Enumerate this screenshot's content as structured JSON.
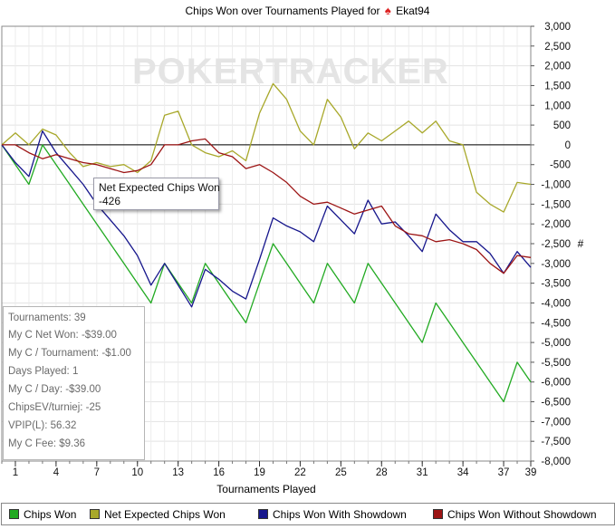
{
  "title": {
    "prefix": "Chips Won over Tournaments Played for",
    "player": "Ekat94"
  },
  "watermark": "POKERTRACKER",
  "stats": [
    "Tournaments: 39",
    "My C Net Won: -$39.00",
    "My C / Tournament: -$1.00",
    "Days Played: 1",
    "My C / Day: -$39.00",
    "ChipsEV/turniej: -25",
    "VPIP(L): 56.32",
    "My C Fee: $9.36"
  ],
  "tooltip": {
    "label": "Net Expected Chips Won",
    "value": "-426"
  },
  "legend": [
    {
      "label": "Chips Won",
      "color": "#22aa22"
    },
    {
      "label": "Net Expected Chips Won",
      "color": "#a8a82a"
    },
    {
      "label": "Chips Won With Showdown",
      "color": "#16168c"
    },
    {
      "label": "Chips Won Without Showdown",
      "color": "#9c1414"
    }
  ],
  "chart_data": {
    "type": "line",
    "title": "Chips Won over Tournaments Played for Ekat94",
    "xlabel": "Tournaments Played",
    "ylabel": "#",
    "xlim": [
      0,
      39
    ],
    "ylim": [
      -8000,
      3000
    ],
    "xticks": [
      1,
      4,
      7,
      10,
      13,
      16,
      19,
      22,
      25,
      28,
      31,
      34,
      37,
      39
    ],
    "yticks": [
      3000,
      2500,
      2000,
      1500,
      1000,
      500,
      0,
      -500,
      -1000,
      -1500,
      -2000,
      -2500,
      -3000,
      -3500,
      -4000,
      -4500,
      -5000,
      -5500,
      -6000,
      -6500,
      -7000,
      -7500,
      -8000
    ],
    "ytick_labels": [
      "3,000",
      "2,500",
      "2,000",
      "1,500",
      "1,000",
      "500",
      "0",
      "-500",
      "-1,000",
      "-1,500",
      "-2,000",
      "-2,500",
      "-3,000",
      "-3,500",
      "-4,000",
      "-4,500",
      "-5,000",
      "-5,500",
      "-6,000",
      "-6,500",
      "-7,000",
      "-7,500",
      "-8,000"
    ],
    "grid": true,
    "x": [
      0,
      1,
      2,
      3,
      4,
      5,
      6,
      7,
      8,
      9,
      10,
      11,
      12,
      13,
      14,
      15,
      16,
      17,
      18,
      19,
      20,
      21,
      22,
      23,
      24,
      25,
      26,
      27,
      28,
      29,
      30,
      31,
      32,
      33,
      34,
      35,
      36,
      37,
      38,
      39
    ],
    "series": [
      {
        "name": "Chips Won",
        "color": "#22aa22",
        "values": [
          0,
          -500,
          -1000,
          0,
          -500,
          -1000,
          -1500,
          -2000,
          -2500,
          -3000,
          -3500,
          -4000,
          -3000,
          -3500,
          -4000,
          -3000,
          -3500,
          -4000,
          -4500,
          -3500,
          -2500,
          -3000,
          -3500,
          -4000,
          -3000,
          -3500,
          -4000,
          -3000,
          -3500,
          -4000,
          -4500,
          -5000,
          -4000,
          -4500,
          -5000,
          -5500,
          -6000,
          -6500,
          -5500,
          -6000
        ]
      },
      {
        "name": "Net Expected Chips Won",
        "color": "#a8a82a",
        "values": [
          0,
          300,
          0,
          400,
          250,
          -200,
          -550,
          -450,
          -550,
          -500,
          -700,
          -400,
          750,
          850,
          0,
          -200,
          -300,
          -150,
          -400,
          800,
          1550,
          1150,
          350,
          0,
          1150,
          700,
          -100,
          300,
          100,
          350,
          600,
          300,
          600,
          100,
          0,
          -1200,
          -1500,
          -1700,
          -950,
          -1000
        ]
      },
      {
        "name": "Chips Won With Showdown",
        "color": "#16168c",
        "values": [
          0,
          -450,
          -800,
          350,
          -200,
          -600,
          -1000,
          -1500,
          -1900,
          -2300,
          -2800,
          -3550,
          -3000,
          -3550,
          -4100,
          -3150,
          -3400,
          -3700,
          -3900,
          -2900,
          -1850,
          -2050,
          -2200,
          -2450,
          -1550,
          -1900,
          -2250,
          -1400,
          -2000,
          -1950,
          -2300,
          -2700,
          -1750,
          -2150,
          -2450,
          -2450,
          -2750,
          -3250,
          -2700,
          -3100
        ]
      },
      {
        "name": "Chips Won Without Showdown",
        "color": "#9c1414",
        "values": [
          0,
          0,
          -200,
          -350,
          -250,
          -350,
          -450,
          -500,
          -600,
          -700,
          -650,
          -500,
          0,
          0,
          100,
          150,
          -200,
          -300,
          -600,
          -500,
          -700,
          -950,
          -1300,
          -1500,
          -1450,
          -1600,
          -1750,
          -1650,
          -1550,
          -2050,
          -2250,
          -2300,
          -2450,
          -2400,
          -2500,
          -2650,
          -3000,
          -3250,
          -2800,
          -2850
        ]
      }
    ]
  }
}
